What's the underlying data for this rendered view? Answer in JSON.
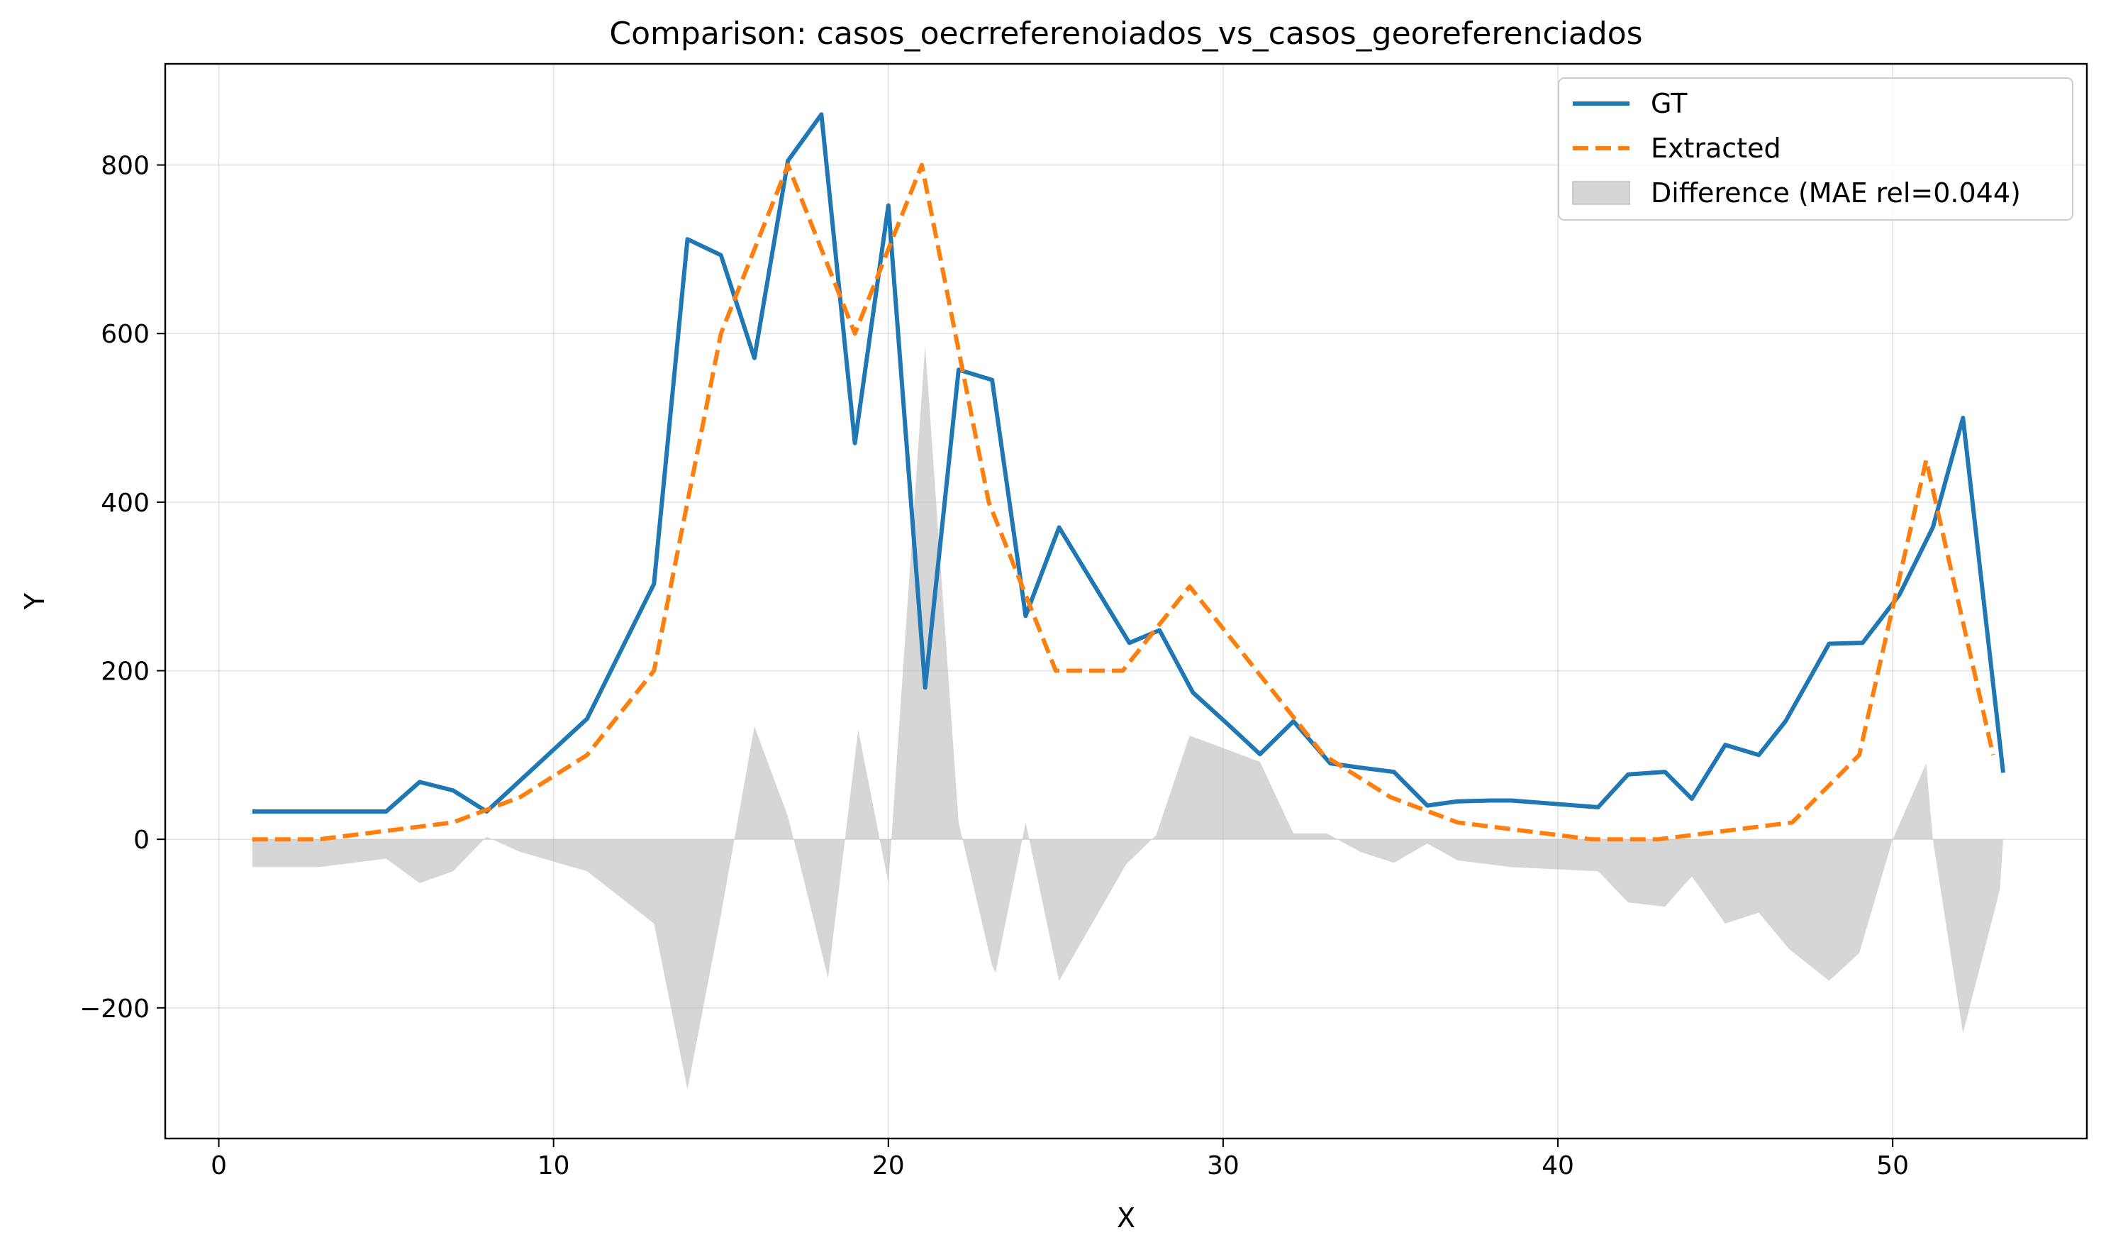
{
  "chart_data": {
    "type": "line",
    "title": "Comparison: casos_oecrreferenoiados_vs_casos_georeferenciados",
    "xlabel": "X",
    "ylabel": "Y",
    "xlim": [
      -1.6,
      55.8
    ],
    "ylim": [
      -355,
      920
    ],
    "x_ticks": [
      0,
      10,
      20,
      30,
      40,
      50
    ],
    "y_ticks": [
      -200,
      0,
      200,
      400,
      600,
      800
    ],
    "y_tick_labels": [
      "−200",
      "0",
      "200",
      "400",
      "600",
      "800"
    ],
    "grid": true,
    "legend_position": "top-right",
    "series": [
      {
        "name": "GT",
        "color": "#1f77b4",
        "style": "solid",
        "x": [
          1,
          3,
          5,
          6,
          7,
          8,
          11,
          13,
          14,
          15,
          16,
          17,
          18,
          19,
          20,
          21.1,
          22.1,
          23.1,
          24.1,
          25.1,
          27.2,
          28.1,
          29.1,
          30.1,
          31.1,
          32.1,
          33.2,
          34.1,
          35.1,
          36.1,
          37,
          38,
          38.6,
          41.2,
          42.1,
          43.2,
          44,
          45,
          46,
          46.8,
          48.1,
          49.1,
          50.2,
          51.2,
          52.1,
          53.3
        ],
        "y": [
          33,
          33,
          33,
          68,
          58,
          33,
          143,
          303,
          712,
          693,
          571,
          805,
          860,
          470,
          752,
          180,
          557,
          545,
          265,
          370,
          233,
          248,
          174,
          138,
          101,
          140,
          90,
          85,
          80,
          40,
          45,
          46,
          46,
          38,
          77,
          80,
          48,
          112,
          100,
          140,
          232,
          233,
          290,
          370,
          500,
          79
        ]
      },
      {
        "name": "Extracted",
        "color": "#ff7f0e",
        "style": "dashed",
        "x": [
          1,
          3,
          5,
          7,
          9,
          11,
          13,
          15,
          17,
          19,
          21,
          23,
          25,
          27,
          29,
          31,
          33,
          35,
          37,
          39,
          41,
          43,
          45,
          47,
          49,
          51,
          53
        ],
        "y": [
          0,
          0,
          10,
          20,
          50,
          100,
          200,
          600,
          800,
          600,
          800,
          400,
          200,
          200,
          300,
          200,
          100,
          50,
          20,
          10,
          0,
          0,
          10,
          20,
          100,
          450,
          100
        ]
      },
      {
        "name": "Difference (MAE rel=0.044)",
        "color": "#bbbbbb",
        "style": "area",
        "x": [
          1,
          3,
          5,
          6,
          7,
          8,
          9,
          11,
          13,
          14,
          15,
          16,
          17,
          17.3,
          18.2,
          19.1,
          20,
          20.1,
          21.1,
          22.1,
          23.1,
          23.2,
          24.1,
          25.1,
          27.1,
          28,
          29,
          31.1,
          32.1,
          33.1,
          34.1,
          35.1,
          36.1,
          37,
          38.6,
          41.2,
          42.1,
          43.2,
          44,
          45,
          46,
          46.9,
          48.1,
          49,
          50,
          51,
          51.2,
          52.1,
          53.2,
          53.3
        ],
        "y": [
          -33,
          -33,
          -23,
          -52,
          -38,
          3,
          -15,
          -38,
          -100,
          -297,
          -90,
          134,
          27,
          -20,
          -165,
          130,
          -52,
          5,
          586,
          20,
          -150,
          -158,
          20,
          -168,
          -30,
          5,
          123,
          92,
          7,
          7,
          -15,
          -28,
          -5,
          -25,
          -33,
          -38,
          -75,
          -80,
          -44,
          -100,
          -87,
          -130,
          -168,
          -135,
          0,
          90,
          0,
          -230,
          -60,
          0
        ]
      }
    ]
  }
}
